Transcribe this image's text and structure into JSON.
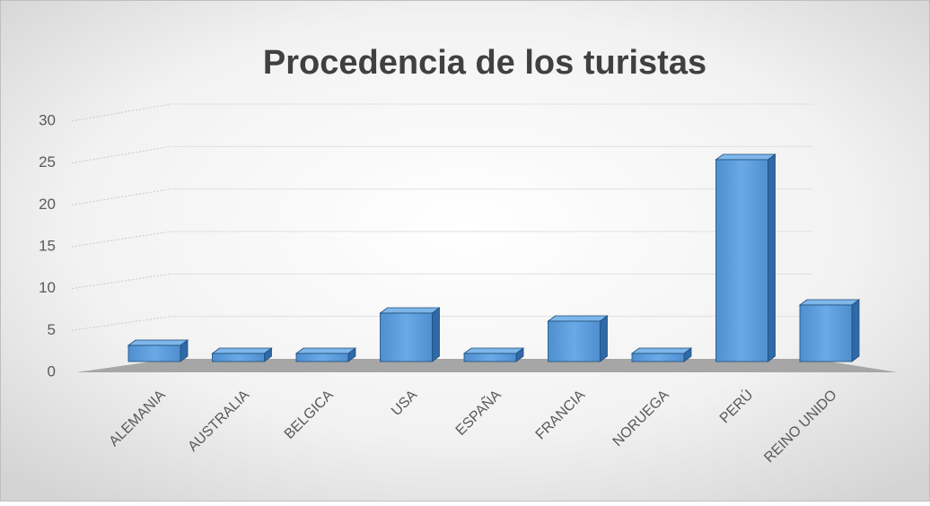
{
  "chart_data": {
    "type": "bar3d",
    "title": "Procedencia de los turistas",
    "categories": [
      "ALEMANIA",
      "AUSTRALIA",
      "BELGICA",
      "USA",
      "ESPAÑA",
      "FRANCIA",
      "NORUEGA",
      "PERÚ",
      "REINO UNIDO"
    ],
    "values": [
      2,
      1,
      1,
      6,
      1,
      5,
      1,
      25,
      7
    ],
    "color": "#5b9bd5",
    "ylim": [
      0,
      30
    ],
    "yticks": [
      0,
      5,
      10,
      15,
      20,
      25,
      30
    ],
    "grid": true
  }
}
